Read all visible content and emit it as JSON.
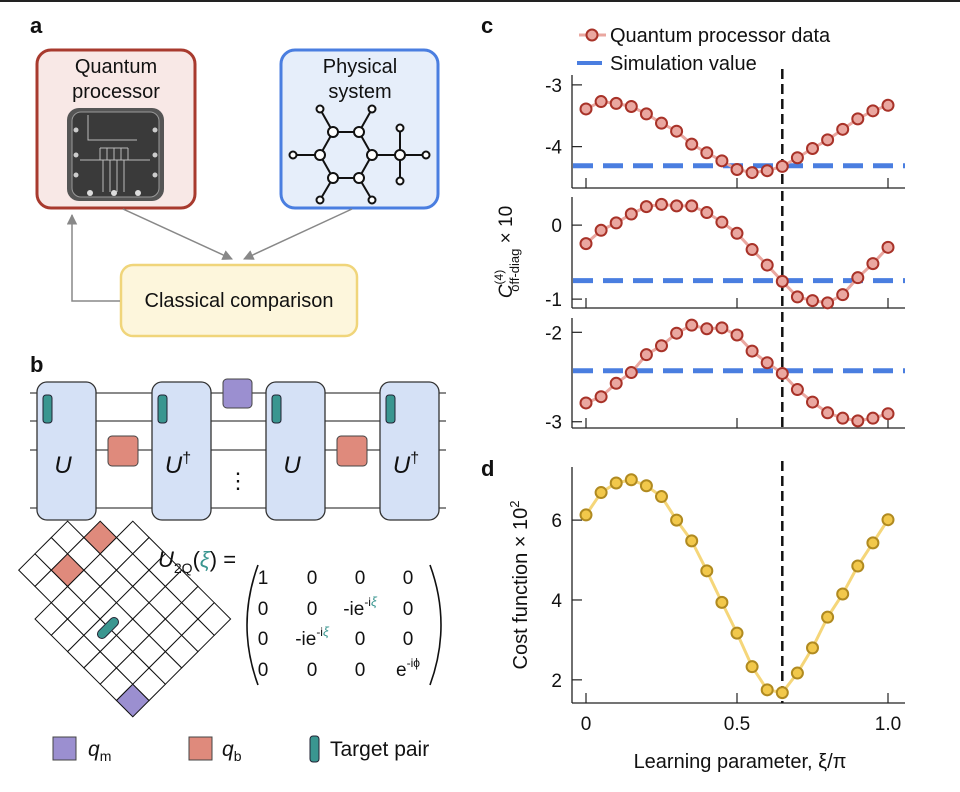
{
  "panel_a": {
    "letter": "a",
    "quantum_box": {
      "line1": "Quantum",
      "line2": "processor"
    },
    "physical_box": {
      "line1": "Physical",
      "line2": "system"
    },
    "classical_box": "Classical comparison",
    "colors": {
      "quantum": "#a83a2e",
      "physical": "#4a7ee0",
      "classical": "#f0d57a"
    }
  },
  "panel_b": {
    "letter": "b",
    "blocks": [
      "U",
      "U",
      "U",
      "U"
    ],
    "dagger": "†",
    "ellipsis": "⋮",
    "matrix_label": {
      "main": "U",
      "sub": "2Q",
      "open": "(",
      "arg": "ξ",
      "close": ") ="
    },
    "matrix": [
      [
        "1",
        "0",
        "0",
        "0"
      ],
      [
        "0",
        "0",
        "-ie",
        "0"
      ],
      [
        "0",
        "-ie",
        "0",
        "0"
      ],
      [
        "0",
        "0",
        "0",
        "e"
      ]
    ],
    "exp_prefix": "-i",
    "exp_xi": "ξ",
    "exp_phi": "-iϕ",
    "legend": [
      {
        "symbol": "q",
        "sub": "m",
        "color": "#9b8fd0"
      },
      {
        "symbol": "q",
        "sub": "b",
        "color": "#df8a7c"
      },
      {
        "label": "Target pair",
        "color": "#3a9690"
      }
    ]
  },
  "chart_data": {
    "type": "line",
    "x": [
      0,
      0.05,
      0.1,
      0.15,
      0.2,
      0.25,
      0.3,
      0.35,
      0.4,
      0.45,
      0.5,
      0.55,
      0.6,
      0.65,
      0.7,
      0.75,
      0.8,
      0.85,
      0.9,
      0.95,
      1.0
    ],
    "xlabel": "Learning parameter, ξ/π",
    "xticks": [
      "0",
      "0.5",
      "1.0"
    ],
    "xlim": [
      -0.05,
      1.05
    ],
    "vline_x": 0.65,
    "panels": [
      {
        "letter": "c",
        "ylabel": {
          "main": "C",
          "sup": "(4)",
          "sub": "off-diag",
          "suffix": " × 10"
        },
        "legend": {
          "data": "Quantum processor data",
          "sim": "Simulation value"
        },
        "subplots": [
          {
            "ylim": [
              -4.67,
              -2.84
            ],
            "yticks": [
              "-3",
              "-4"
            ],
            "simulation": -4.31,
            "values": [
              -3.39,
              -3.27,
              -3.3,
              -3.35,
              -3.47,
              -3.62,
              -3.75,
              -3.96,
              -4.1,
              -4.23,
              -4.37,
              -4.42,
              -4.39,
              -4.32,
              -4.18,
              -4.03,
              -3.89,
              -3.72,
              -3.55,
              -3.42,
              -3.33
            ]
          },
          {
            "ylim": [
              -1.12,
              0.38
            ],
            "yticks": [
              "0",
              "-1"
            ],
            "simulation": -0.75,
            "values": [
              -0.25,
              -0.07,
              0.03,
              0.15,
              0.25,
              0.28,
              0.26,
              0.26,
              0.17,
              0.04,
              -0.11,
              -0.33,
              -0.54,
              -0.76,
              -0.97,
              -1.02,
              -1.05,
              -0.94,
              -0.71,
              -0.52,
              -0.3
            ]
          },
          {
            "ylim": [
              -3.07,
              -1.84
            ],
            "yticks": [
              "-2",
              "-3"
            ],
            "simulation": -2.43,
            "values": [
              -2.79,
              -2.72,
              -2.57,
              -2.45,
              -2.25,
              -2.15,
              -2.01,
              -1.92,
              -1.96,
              -1.95,
              -2.03,
              -2.21,
              -2.34,
              -2.46,
              -2.64,
              -2.78,
              -2.9,
              -2.96,
              -2.99,
              -2.96,
              -2.91
            ]
          }
        ],
        "colors": {
          "marker_fill": "#eaa7a0",
          "marker_edge": "#a83228",
          "line": "#eaa7a0",
          "simulation": "#4a7ee0"
        }
      },
      {
        "letter": "d",
        "ylabel": {
          "main": "Cost function × 10",
          "sup": "2"
        },
        "ylim": [
          1.42,
          7.33
        ],
        "yticks": [
          "2",
          "4",
          "6"
        ],
        "values": [
          6.13,
          6.69,
          6.93,
          7.01,
          6.86,
          6.59,
          6.0,
          5.48,
          4.73,
          3.94,
          3.17,
          2.33,
          1.75,
          1.68,
          2.17,
          2.8,
          3.57,
          4.15,
          4.85,
          5.43,
          6.01
        ],
        "colors": {
          "marker_fill": "#f2c84b",
          "marker_edge": "#b08a20",
          "line": "#f5d67a"
        }
      }
    ]
  }
}
